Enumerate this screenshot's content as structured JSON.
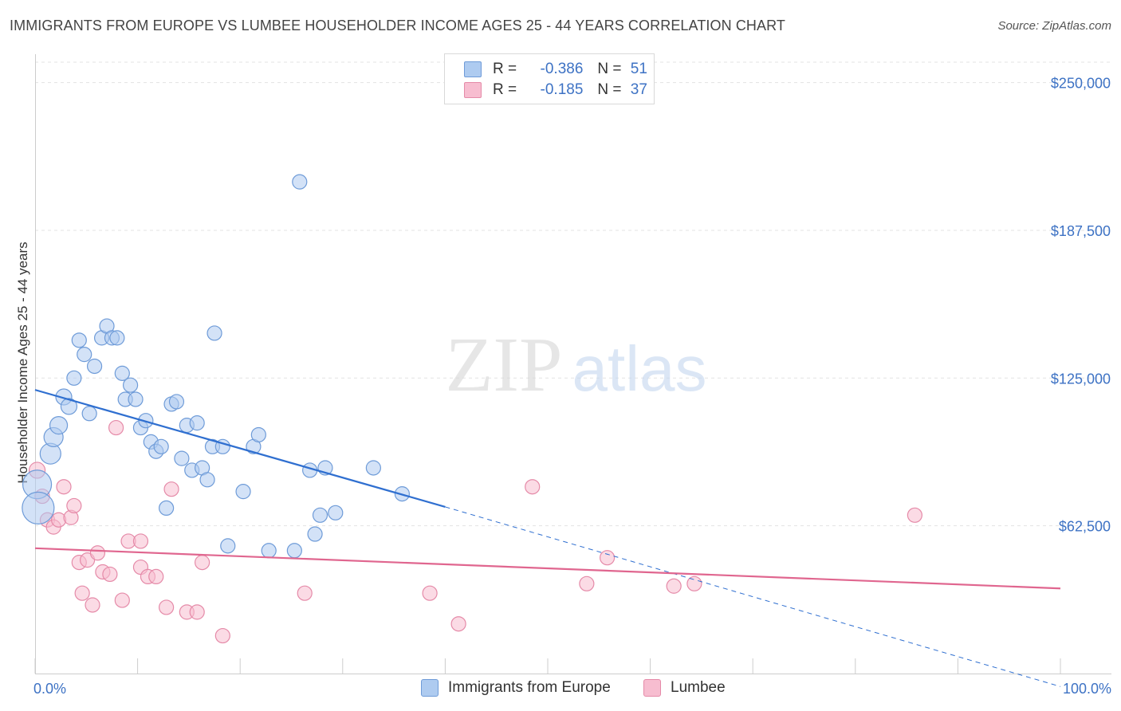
{
  "header": {
    "title": "IMMIGRANTS FROM EUROPE VS LUMBEE HOUSEHOLDER INCOME AGES 25 - 44 YEARS CORRELATION CHART",
    "source": "Source: ZipAtlas.com"
  },
  "watermark": {
    "zip": "ZIP",
    "atlas": "atlas"
  },
  "legend": {
    "series1": {
      "r_label": "R =",
      "r_value": "-0.386",
      "n_label": "N =",
      "n_value": "51"
    },
    "series2": {
      "r_label": "R =",
      "r_value": "-0.185",
      "n_label": "N =",
      "n_value": "37"
    }
  },
  "colors": {
    "europe_fill": "#aecbf0",
    "europe_stroke": "#6e9bd8",
    "europe_line": "#2f6fd0",
    "lumbee_fill": "#f7bdd0",
    "lumbee_stroke": "#e58aa8",
    "lumbee_line": "#e0668f",
    "axis_text": "#3d72c4",
    "grid": "#e3e3e3"
  },
  "chart_data": {
    "type": "scatter",
    "title": "IMMIGRANTS FROM EUROPE VS LUMBEE HOUSEHOLDER INCOME AGES 25 - 44 YEARS CORRELATION CHART",
    "xlabel": "",
    "ylabel": "Householder Income Ages 25 - 44 years",
    "xlim": [
      0,
      100
    ],
    "ylim": [
      0,
      262000
    ],
    "x_tick_labels": [
      "0.0%",
      "100.0%"
    ],
    "y_ticks": [
      62500,
      125000,
      187500,
      250000
    ],
    "y_tick_labels": [
      "$62,500",
      "$125,000",
      "$187,500",
      "$250,000"
    ],
    "legend_position": "top-center",
    "series": [
      {
        "name": "Immigrants from Europe",
        "r": -0.386,
        "n": 51,
        "trend": {
          "x0": 0,
          "y0": 120000,
          "x1": 40,
          "y1": 70500,
          "dash_x1": 100,
          "dash_y1": -5500
        },
        "points": [
          [
            0.2,
            80000,
            18
          ],
          [
            0.3,
            70000,
            20
          ],
          [
            1.5,
            93000,
            13
          ],
          [
            1.8,
            100000,
            12
          ],
          [
            2.3,
            105000,
            11
          ],
          [
            2.8,
            117000,
            10
          ],
          [
            3.3,
            113000,
            10
          ],
          [
            3.8,
            125000,
            9
          ],
          [
            4.3,
            141000,
            9
          ],
          [
            4.8,
            135000,
            9
          ],
          [
            5.3,
            110000,
            9
          ],
          [
            5.8,
            130000,
            9
          ],
          [
            6.5,
            142000,
            9
          ],
          [
            7.0,
            147000,
            9
          ],
          [
            7.5,
            142000,
            9
          ],
          [
            8.0,
            142000,
            9
          ],
          [
            8.5,
            127000,
            9
          ],
          [
            8.8,
            116000,
            9
          ],
          [
            9.3,
            122000,
            9
          ],
          [
            9.8,
            116000,
            9
          ],
          [
            10.3,
            104000,
            9
          ],
          [
            10.8,
            107000,
            9
          ],
          [
            11.3,
            98000,
            9
          ],
          [
            11.8,
            94000,
            9
          ],
          [
            12.3,
            96000,
            9
          ],
          [
            12.8,
            70000,
            9
          ],
          [
            13.3,
            114000,
            9
          ],
          [
            13.8,
            115000,
            9
          ],
          [
            14.3,
            91000,
            9
          ],
          [
            14.8,
            105000,
            9
          ],
          [
            15.3,
            86000,
            9
          ],
          [
            15.8,
            106000,
            9
          ],
          [
            16.3,
            87000,
            9
          ],
          [
            16.8,
            82000,
            9
          ],
          [
            17.3,
            96000,
            9
          ],
          [
            17.5,
            144000,
            9
          ],
          [
            18.3,
            96000,
            9
          ],
          [
            18.8,
            54000,
            9
          ],
          [
            20.3,
            77000,
            9
          ],
          [
            21.3,
            96000,
            9
          ],
          [
            21.8,
            101000,
            9
          ],
          [
            22.8,
            52000,
            9
          ],
          [
            25.3,
            52000,
            9
          ],
          [
            25.8,
            208000,
            9
          ],
          [
            26.8,
            86000,
            9
          ],
          [
            27.3,
            59000,
            9
          ],
          [
            27.8,
            67000,
            9
          ],
          [
            28.3,
            87000,
            9
          ],
          [
            29.3,
            68000,
            9
          ],
          [
            33.0,
            87000,
            9
          ],
          [
            35.8,
            76000,
            9
          ]
        ]
      },
      {
        "name": "Lumbee",
        "r": -0.185,
        "n": 37,
        "trend": {
          "x0": 0,
          "y0": 53000,
          "x1": 100,
          "y1": 36000
        },
        "points": [
          [
            0.2,
            86000,
            10
          ],
          [
            0.7,
            75000,
            9
          ],
          [
            1.2,
            65000,
            9
          ],
          [
            1.8,
            62000,
            9
          ],
          [
            2.3,
            65000,
            9
          ],
          [
            2.8,
            79000,
            9
          ],
          [
            3.5,
            66000,
            9
          ],
          [
            3.8,
            71000,
            9
          ],
          [
            4.3,
            47000,
            9
          ],
          [
            4.6,
            34000,
            9
          ],
          [
            5.1,
            48000,
            9
          ],
          [
            5.6,
            29000,
            9
          ],
          [
            6.1,
            51000,
            9
          ],
          [
            6.6,
            43000,
            9
          ],
          [
            7.3,
            42000,
            9
          ],
          [
            7.9,
            104000,
            9
          ],
          [
            8.5,
            31000,
            9
          ],
          [
            9.1,
            56000,
            9
          ],
          [
            10.3,
            56000,
            9
          ],
          [
            10.3,
            45000,
            9
          ],
          [
            11.0,
            41000,
            9
          ],
          [
            11.8,
            41000,
            9
          ],
          [
            12.8,
            28000,
            9
          ],
          [
            13.3,
            78000,
            9
          ],
          [
            14.8,
            26000,
            9
          ],
          [
            15.8,
            26000,
            9
          ],
          [
            16.3,
            47000,
            9
          ],
          [
            18.3,
            16000,
            9
          ],
          [
            26.3,
            34000,
            9
          ],
          [
            38.5,
            34000,
            9
          ],
          [
            41.3,
            21000,
            9
          ],
          [
            48.5,
            79000,
            9
          ],
          [
            53.8,
            38000,
            9
          ],
          [
            55.8,
            49000,
            9
          ],
          [
            62.3,
            37000,
            9
          ],
          [
            64.3,
            38000,
            9
          ],
          [
            85.8,
            67000,
            9
          ]
        ]
      }
    ]
  }
}
